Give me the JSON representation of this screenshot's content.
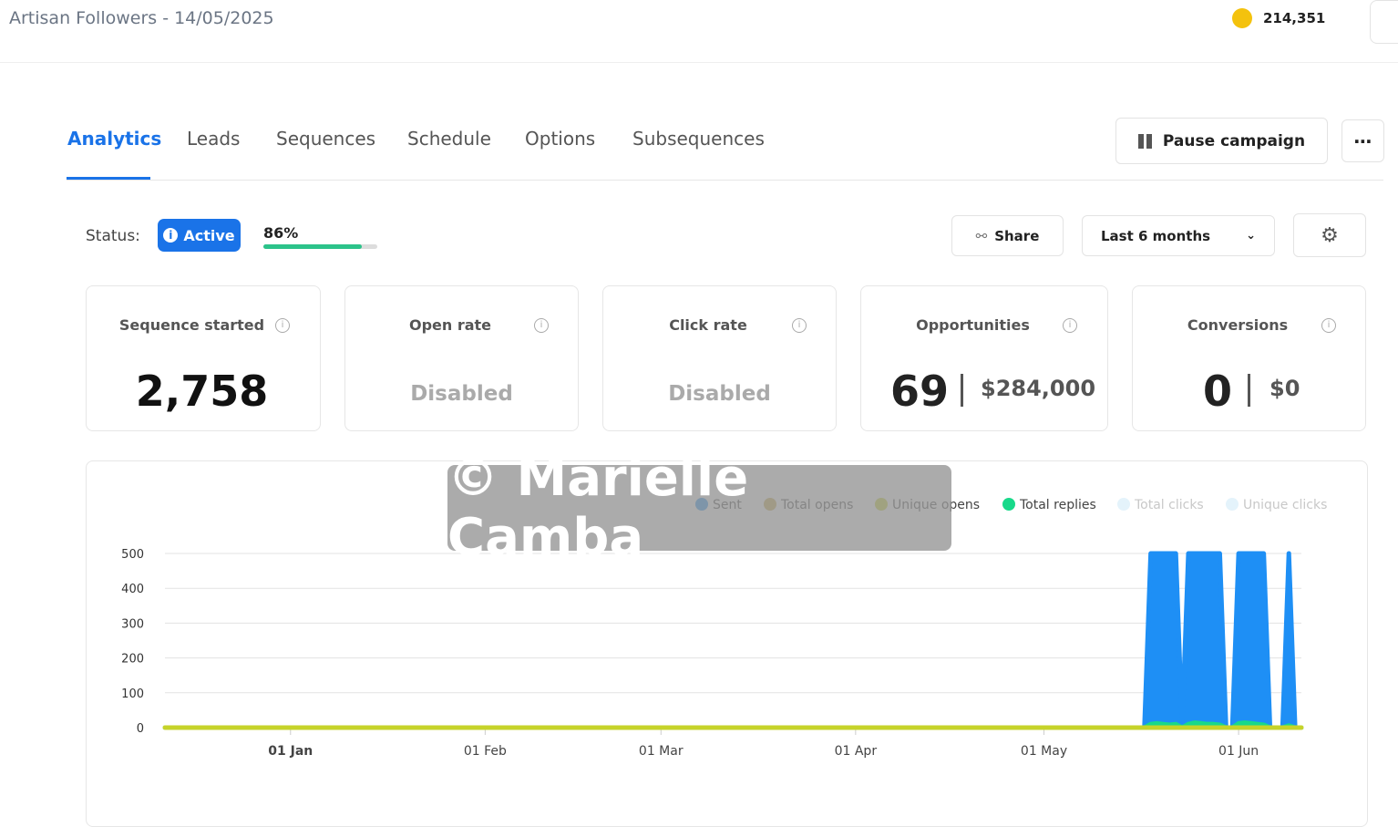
{
  "header": {
    "title": "Artisan Followers - 14/05/2025",
    "credits": "214,351"
  },
  "tabs": [
    "Analytics",
    "Leads",
    "Sequences",
    "Schedule",
    "Options",
    "Subsequences"
  ],
  "actions": {
    "pause": "Pause campaign",
    "share": "Share",
    "range": "Last 6 months"
  },
  "status": {
    "label": "Status:",
    "badge": "Active",
    "progress": {
      "value": 86,
      "label": "86%"
    }
  },
  "cards": [
    {
      "title": "Sequence started",
      "value": "2,758"
    },
    {
      "title": "Open rate",
      "value": "Disabled"
    },
    {
      "title": "Click rate",
      "value": "Disabled"
    },
    {
      "title": "Opportunities",
      "value": "69",
      "amount": "$284,000"
    },
    {
      "title": "Conversions",
      "value": "0",
      "amount": "$0"
    }
  ],
  "chart_data": {
    "type": "area",
    "x": [
      "12 Dec",
      "17 May",
      "18 May",
      "19 May",
      "20 May",
      "21 May",
      "22 May",
      "23 May",
      "24 May",
      "25 May",
      "26 May",
      "27 May",
      "28 May",
      "29 May",
      "30 May",
      "31 May",
      "01 Jun",
      "02 Jun",
      "03 Jun",
      "04 Jun",
      "05 Jun",
      "06 Jun",
      "07 Jun",
      "08 Jun",
      "09 Jun",
      "10 Jun",
      "11 Jun"
    ],
    "xlim": [
      "12 Dec",
      "11 Jun"
    ],
    "xticks": [
      "01 Jan",
      "01 Feb",
      "01 Mar",
      "01 Apr",
      "01 May",
      "01 Jun"
    ],
    "ylim": [
      0,
      500
    ],
    "yticks": [
      0,
      100,
      200,
      300,
      400,
      500
    ],
    "grid": true,
    "series": [
      {
        "name": "Sent",
        "color": "#1e8ff5",
        "values": [
          0,
          0,
          500,
          500,
          500,
          500,
          500,
          0,
          500,
          500,
          500,
          500,
          500,
          500,
          0,
          0,
          500,
          500,
          500,
          500,
          500,
          0,
          0,
          0,
          500,
          0,
          0
        ]
      },
      {
        "name": "Total opens",
        "color": "#c8a848",
        "values": [
          0,
          0,
          0,
          0,
          0,
          0,
          0,
          0,
          0,
          0,
          0,
          0,
          0,
          0,
          0,
          0,
          0,
          0,
          0,
          0,
          0,
          0,
          0,
          0,
          0,
          0,
          0
        ]
      },
      {
        "name": "Unique opens",
        "color": "#c6d32a",
        "values": [
          0,
          0,
          0,
          0,
          0,
          0,
          0,
          0,
          0,
          0,
          0,
          0,
          0,
          0,
          0,
          0,
          0,
          0,
          0,
          0,
          0,
          0,
          0,
          0,
          0,
          0,
          0
        ]
      },
      {
        "name": "Total replies",
        "color": "#18d98a",
        "values": [
          0,
          0,
          10,
          12,
          10,
          8,
          10,
          0,
          10,
          14,
          12,
          10,
          10,
          8,
          0,
          0,
          12,
          14,
          12,
          10,
          8,
          0,
          0,
          0,
          6,
          0,
          0
        ]
      },
      {
        "name": "Total clicks",
        "color": "#e4f3fb",
        "values": [
          0,
          0,
          0,
          0,
          0,
          0,
          0,
          0,
          0,
          0,
          0,
          0,
          0,
          0,
          0,
          0,
          0,
          0,
          0,
          0,
          0,
          0,
          0,
          0,
          0,
          0,
          0
        ]
      },
      {
        "name": "Unique clicks",
        "color": "#e4f3fb",
        "values": [
          0,
          0,
          0,
          0,
          0,
          0,
          0,
          0,
          0,
          0,
          0,
          0,
          0,
          0,
          0,
          0,
          0,
          0,
          0,
          0,
          0,
          0,
          0,
          0,
          0,
          0,
          0
        ]
      }
    ]
  },
  "watermark": "© Marielle Camba"
}
